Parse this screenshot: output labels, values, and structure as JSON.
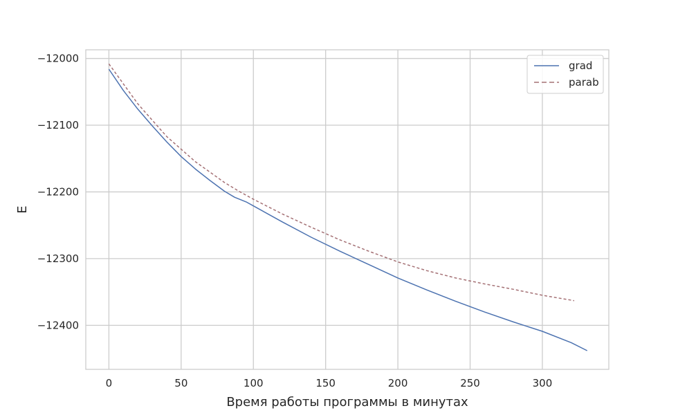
{
  "chart_data": {
    "type": "line",
    "title": "",
    "xlabel": "Время работы программы в минутах",
    "ylabel": "E",
    "xlim": [
      -16,
      346
    ],
    "ylim": [
      -12466,
      -11987
    ],
    "xticks": [
      0,
      50,
      100,
      150,
      200,
      250,
      300
    ],
    "yticks": [
      -12000,
      -12100,
      -12200,
      -12300,
      -12400
    ],
    "xtick_labels": [
      "0",
      "50",
      "100",
      "150",
      "200",
      "250",
      "300"
    ],
    "ytick_labels": [
      "−12000",
      "−12100",
      "−12200",
      "−12300",
      "−12400"
    ],
    "grid": true,
    "legend_position": "top-right",
    "series": [
      {
        "name": "grad",
        "style": "solid",
        "color": "#4c72b0",
        "x": [
          0,
          10,
          20,
          30,
          40,
          50,
          60,
          70,
          80,
          87,
          95,
          100,
          120,
          140,
          160,
          180,
          200,
          220,
          240,
          260,
          280,
          300,
          320,
          331
        ],
        "y": [
          -12016,
          -12048,
          -12076,
          -12101,
          -12125,
          -12147,
          -12166,
          -12183,
          -12199,
          -12208,
          -12215,
          -12221,
          -12245,
          -12268,
          -12289,
          -12309,
          -12329,
          -12347,
          -12364,
          -12380,
          -12395,
          -12409,
          -12426,
          -12438
        ]
      },
      {
        "name": "parab",
        "style": "dashed",
        "color": "#a47074",
        "x": [
          0,
          20,
          40,
          60,
          80,
          90,
          100,
          120,
          140,
          160,
          180,
          200,
          220,
          240,
          260,
          280,
          300,
          322
        ],
        "y": [
          -12008,
          -12068,
          -12117,
          -12155,
          -12186,
          -12199,
          -12211,
          -12233,
          -12253,
          -12272,
          -12289,
          -12305,
          -12318,
          -12329,
          -12338,
          -12346,
          -12355,
          -12363
        ]
      }
    ]
  }
}
